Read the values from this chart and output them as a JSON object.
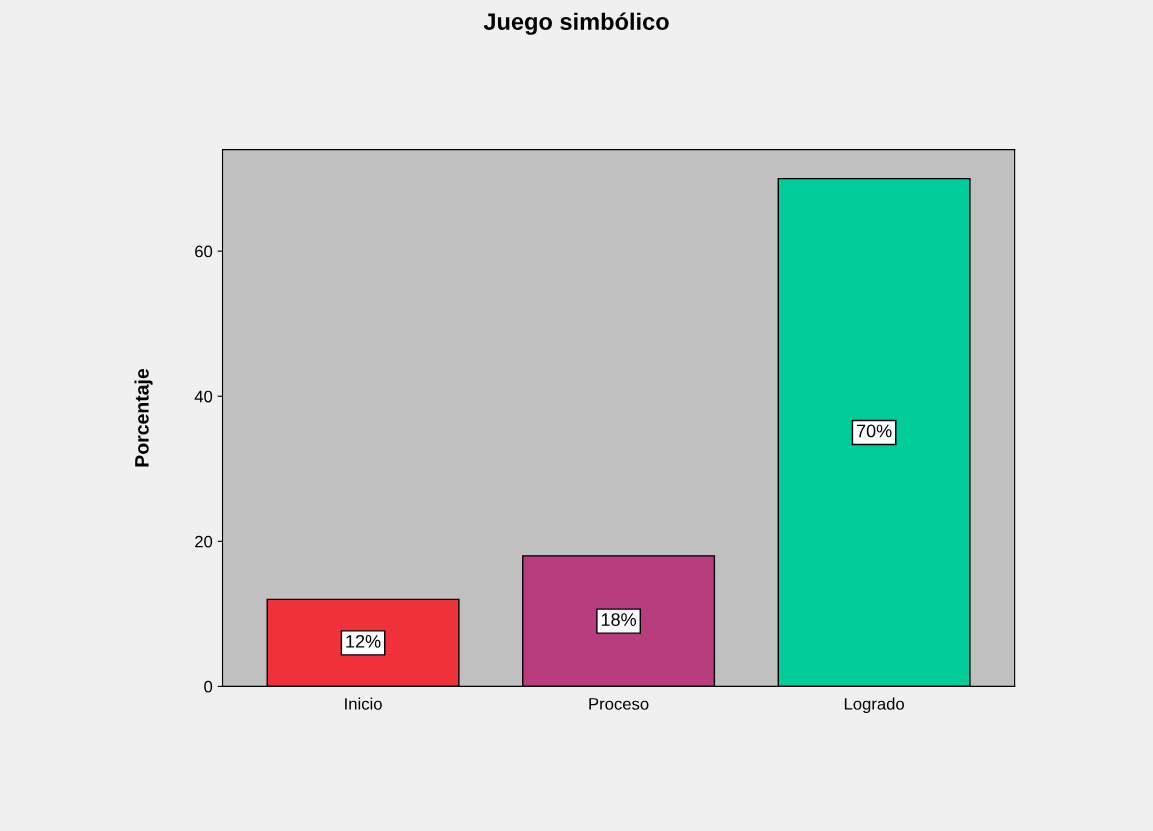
{
  "chart_data": {
    "type": "bar",
    "title": "Juego simbólico",
    "ylabel": "Porcentaje",
    "categories": [
      "Inicio",
      "Proceso",
      "Logrado"
    ],
    "values": [
      12,
      18,
      70
    ],
    "colors": [
      "#f0333a",
      "#b83d7f",
      "#00cc99"
    ],
    "value_labels": [
      "12%",
      "18%",
      "70%"
    ],
    "ylim": [
      0,
      74
    ],
    "yticks": [
      0,
      20,
      40,
      60
    ],
    "grid": false
  }
}
